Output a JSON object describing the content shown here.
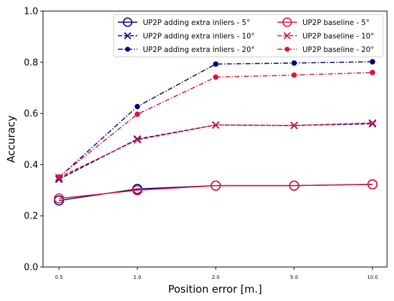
{
  "chart_data": {
    "type": "line",
    "xlabel": "Position error [m.]",
    "ylabel": "Accuracy",
    "categories": [
      "0.5",
      "1.0",
      "2.0",
      "5.0",
      "10.0"
    ],
    "ylim": [
      0.0,
      1.0
    ],
    "yticks": [
      "0.0",
      "0.2",
      "0.4",
      "0.6",
      "0.8",
      "1.0"
    ],
    "grid": false,
    "legend_placement": "top-right",
    "legend_columns": 2,
    "colors": {
      "navy": "#000080",
      "crimson": "#dc143c"
    },
    "series": [
      {
        "name": "UP2P adding extra inliers - 5°",
        "color": "#000080",
        "marker": "open-circle",
        "linestyle": "solid",
        "values": [
          0.26,
          0.305,
          0.318,
          0.318,
          0.323
        ]
      },
      {
        "name": "UP2P adding extra inliers - 10°",
        "color": "#000080",
        "marker": "x",
        "linestyle": "dashed",
        "values": [
          0.343,
          0.5,
          0.555,
          0.553,
          0.56
        ]
      },
      {
        "name": "UP2P adding extra inliers - 20°",
        "color": "#000080",
        "marker": "dot",
        "linestyle": "dashdot",
        "values": [
          0.35,
          0.627,
          0.793,
          0.797,
          0.802
        ]
      },
      {
        "name": "UP2P baseline - 5°",
        "color": "#dc143c",
        "marker": "open-circle",
        "linestyle": "solid",
        "values": [
          0.268,
          0.3,
          0.318,
          0.318,
          0.323
        ]
      },
      {
        "name": "UP2P baseline - 10°",
        "color": "#dc143c",
        "marker": "x",
        "linestyle": "dashed",
        "values": [
          0.35,
          0.497,
          0.555,
          0.553,
          0.563
        ]
      },
      {
        "name": "UP2P baseline - 20°",
        "color": "#dc143c",
        "marker": "dot",
        "linestyle": "dashdot",
        "values": [
          0.352,
          0.597,
          0.742,
          0.75,
          0.76
        ]
      }
    ]
  }
}
